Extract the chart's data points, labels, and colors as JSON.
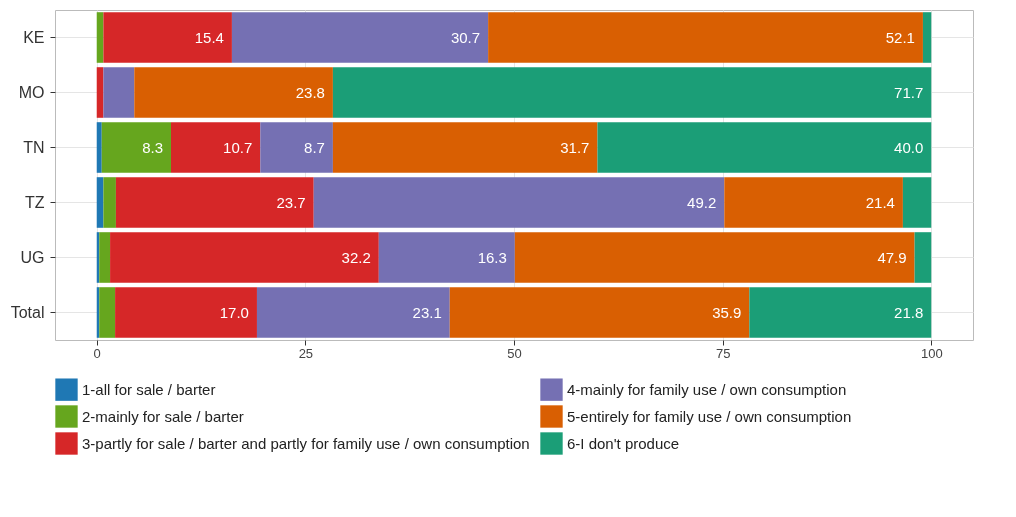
{
  "chart_data": {
    "type": "bar",
    "orientation": "horizontal",
    "stacked": true,
    "categories": [
      "KE",
      "MO",
      "TN",
      "TZ",
      "UG",
      "Total"
    ],
    "series": [
      {
        "name": "1-all for sale / barter",
        "color": "#1f78b4",
        "values": [
          0,
          0,
          0.6,
          0.8,
          0.3,
          0.3
        ],
        "value_labels": [
          null,
          null,
          null,
          null,
          null,
          null
        ]
      },
      {
        "name": "2-mainly for sale / barter",
        "color": "#66a61e",
        "values": [
          0.8,
          0,
          8.3,
          1.5,
          1.3,
          1.9
        ],
        "value_labels": [
          null,
          null,
          "8.3",
          null,
          null,
          null
        ]
      },
      {
        "name": "3-partly for sale / barter and partly for family use / own consumption",
        "color": "#d62728",
        "values": [
          15.4,
          0.8,
          10.7,
          23.7,
          32.2,
          17.0
        ],
        "value_labels": [
          "15.4",
          null,
          "10.7",
          "23.7",
          "32.2",
          "17.0"
        ]
      },
      {
        "name": "4-mainly for family use / own consumption",
        "color": "#7570b3",
        "values": [
          30.7,
          3.7,
          8.7,
          49.2,
          16.3,
          23.1
        ],
        "value_labels": [
          "30.7",
          null,
          "8.7",
          "49.2",
          "16.3",
          "23.1"
        ]
      },
      {
        "name": "5-entirely for family use / own consumption",
        "color": "#d95f02",
        "values": [
          52.1,
          23.8,
          31.7,
          21.4,
          47.9,
          35.9
        ],
        "value_labels": [
          "52.1",
          "23.8",
          "31.7",
          "21.4",
          "47.9",
          "35.9"
        ]
      },
      {
        "name": "6-I don't produce",
        "color": "#1b9e77",
        "values": [
          1.0,
          71.7,
          40.0,
          3.4,
          2.0,
          21.8
        ],
        "value_labels": [
          null,
          "71.7",
          "40.0",
          null,
          null,
          "21.8"
        ]
      }
    ],
    "xlim": [
      -5,
      105
    ],
    "xticks": [
      0,
      25,
      50,
      75,
      100
    ],
    "grid": true,
    "legend": "bottom"
  }
}
